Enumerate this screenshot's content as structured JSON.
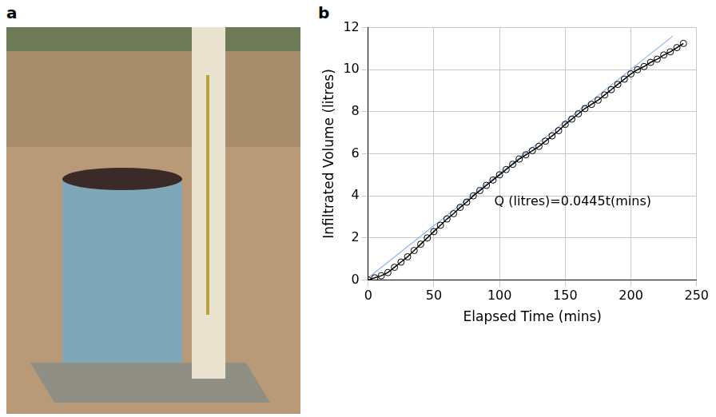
{
  "panel_labels": [
    "a",
    "b"
  ],
  "chart_data": {
    "type": "line",
    "x_label": "Elapsed Time (mins)",
    "y_label": "Infiltrated Volume (litres)",
    "xlim": [
      0,
      250
    ],
    "xticks": [
      0,
      50,
      100,
      150,
      200,
      250
    ],
    "ylim": [
      0,
      12
    ],
    "yticks": [
      0,
      2,
      4,
      6,
      8,
      10,
      12
    ],
    "grid": true,
    "annotations": [
      {
        "text": "Q (litres)=0.0445t(mins)",
        "x": 96,
        "y": 3.7
      }
    ],
    "series": [
      {
        "color": "#000000",
        "marker": "circle",
        "line_style": "solid",
        "x": [
          0,
          5,
          10,
          15,
          20,
          25,
          30,
          35,
          40,
          45,
          50,
          55,
          60,
          65,
          70,
          75,
          80,
          85,
          90,
          95,
          100,
          105,
          110,
          115,
          120,
          125,
          130,
          135,
          140,
          145,
          150,
          155,
          160,
          165,
          170,
          175,
          180,
          185,
          190,
          195,
          200,
          205,
          210,
          215,
          220,
          225,
          230,
          235,
          240
        ],
        "values": [
          0,
          0.1,
          0.2,
          0.35,
          0.6,
          0.85,
          1.1,
          1.4,
          1.7,
          2.0,
          2.3,
          2.6,
          2.9,
          3.15,
          3.45,
          3.7,
          4.0,
          4.25,
          4.5,
          4.75,
          5.0,
          5.25,
          5.5,
          5.75,
          5.95,
          6.15,
          6.35,
          6.6,
          6.85,
          7.1,
          7.4,
          7.65,
          7.9,
          8.15,
          8.35,
          8.55,
          8.8,
          9.05,
          9.3,
          9.55,
          9.8,
          10.0,
          10.15,
          10.35,
          10.5,
          10.7,
          10.85,
          11.05,
          11.25
        ]
      },
      {
        "color": "#8ab4e8",
        "marker": "none",
        "line_style": "solid",
        "x": [
          0,
          232
        ],
        "values": [
          0.1,
          11.6
        ]
      }
    ]
  }
}
